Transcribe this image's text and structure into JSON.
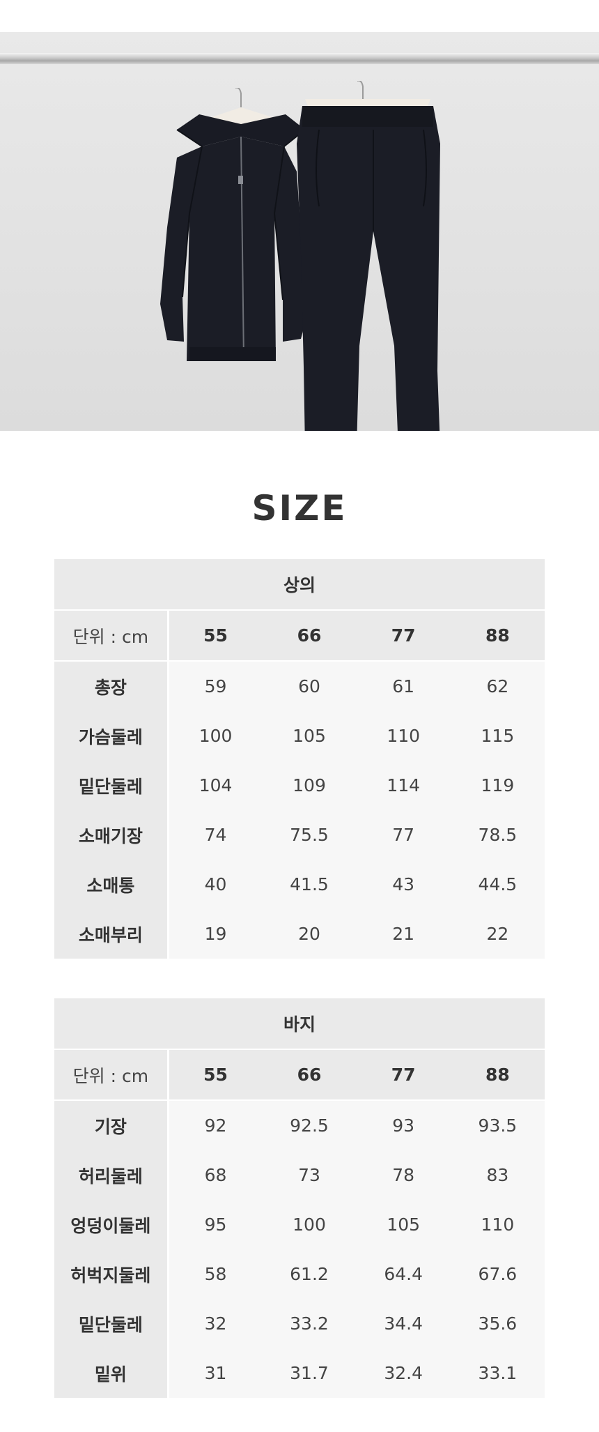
{
  "section_title": "SIZE",
  "tables": [
    {
      "title": "상의",
      "unit_label": "단위 : cm",
      "sizes": [
        "55",
        "66",
        "77",
        "88"
      ],
      "rows": [
        {
          "label": "총장",
          "values": [
            "59",
            "60",
            "61",
            "62"
          ]
        },
        {
          "label": "가슴둘레",
          "values": [
            "100",
            "105",
            "110",
            "115"
          ]
        },
        {
          "label": "밑단둘레",
          "values": [
            "104",
            "109",
            "114",
            "119"
          ]
        },
        {
          "label": "소매기장",
          "values": [
            "74",
            "75.5",
            "77",
            "78.5"
          ]
        },
        {
          "label": "소매통",
          "values": [
            "40",
            "41.5",
            "43",
            "44.5"
          ]
        },
        {
          "label": "소매부리",
          "values": [
            "19",
            "20",
            "21",
            "22"
          ]
        }
      ]
    },
    {
      "title": "바지",
      "unit_label": "단위 : cm",
      "sizes": [
        "55",
        "66",
        "77",
        "88"
      ],
      "rows": [
        {
          "label": "기장",
          "values": [
            "92",
            "92.5",
            "93",
            "93.5"
          ]
        },
        {
          "label": "허리둘레",
          "values": [
            "68",
            "73",
            "78",
            "83"
          ]
        },
        {
          "label": "엉덩이둘레",
          "values": [
            "95",
            "100",
            "105",
            "110"
          ]
        },
        {
          "label": "허벅지둘레",
          "values": [
            "58",
            "61.2",
            "64.4",
            "67.6"
          ]
        },
        {
          "label": "밑단둘레",
          "values": [
            "32",
            "33.2",
            "34.4",
            "35.6"
          ]
        },
        {
          "label": "밑위",
          "values": [
            "31",
            "31.7",
            "32.4",
            "33.1"
          ]
        }
      ]
    }
  ]
}
